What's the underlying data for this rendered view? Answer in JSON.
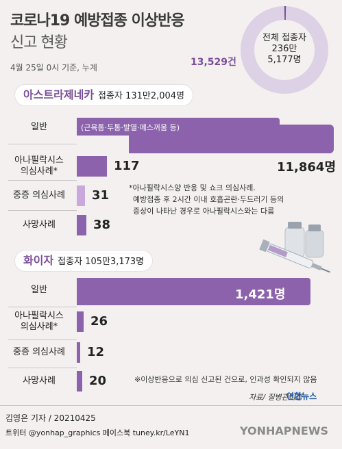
{
  "title_line1": "코로나19 예방접종 이상반응",
  "title_line2": "신고 현황",
  "basis": "4월 25일 0시 기준, 누계",
  "total_vaccinated": {
    "label": "전체 접종자",
    "value_line1": "236만",
    "value_line2": "5,177명"
  },
  "total_reports": "13,529건",
  "colors": {
    "bar": "#8b62ab",
    "bar_light": "#c9a8db",
    "accent": "#7a4f98",
    "donut": "#ddd1e6"
  },
  "icon": "vaccine-syringe-vials",
  "chart_data": [
    {
      "type": "bar",
      "title": "아스트라제네카",
      "subtitle": "접종자 131만2,004명",
      "categories": [
        "일반",
        "아나필락시스 의심사례*",
        "중증 의심사례",
        "사망사례"
      ],
      "category_lines": [
        [
          "일반"
        ],
        [
          "아나필락시스",
          "의심사례*"
        ],
        [
          "중증 의심사례"
        ],
        [
          "사망사례"
        ]
      ],
      "values": [
        11864,
        117,
        31,
        38
      ],
      "value_labels": [
        "11,864명",
        "117",
        "31",
        "38"
      ],
      "bar_note": "(근육통·두통·발열·메스꺼움 등)"
    },
    {
      "type": "bar",
      "title": "화이자",
      "subtitle": "접종자 105만3,173명",
      "categories": [
        "일반",
        "아나필락시스 의심사례*",
        "중증 의심사례",
        "사망사례"
      ],
      "category_lines": [
        [
          "일반"
        ],
        [
          "아나필락시스",
          "의심사례*"
        ],
        [
          "중증 의심사례"
        ],
        [
          "사망사례"
        ]
      ],
      "values": [
        1421,
        26,
        12,
        20
      ],
      "value_labels": [
        "1,421명",
        "26",
        "12",
        "20"
      ]
    }
  ],
  "note_anaphylaxis": [
    "*아나필락시스양 반응 및 쇼크 의심사례.",
    "예방접종 후 2시간  이내 호흡곤란·두드러기 등의",
    "증상이 나타난 경우로 아나필락시스와는 다름"
  ],
  "note_causality": "※이상반응으로 의심 신고된 건으로, 인과성 확인되지 않음",
  "source": "자료/ 질병관리청",
  "agency_mini": "연합뉴스",
  "byline": "김영은 기자 / 20210425",
  "contacts": "트위터 @yonhap_graphics  페이스북 tuney.kr/LeYN1",
  "agency_watermark": "YONHAPNEWS"
}
